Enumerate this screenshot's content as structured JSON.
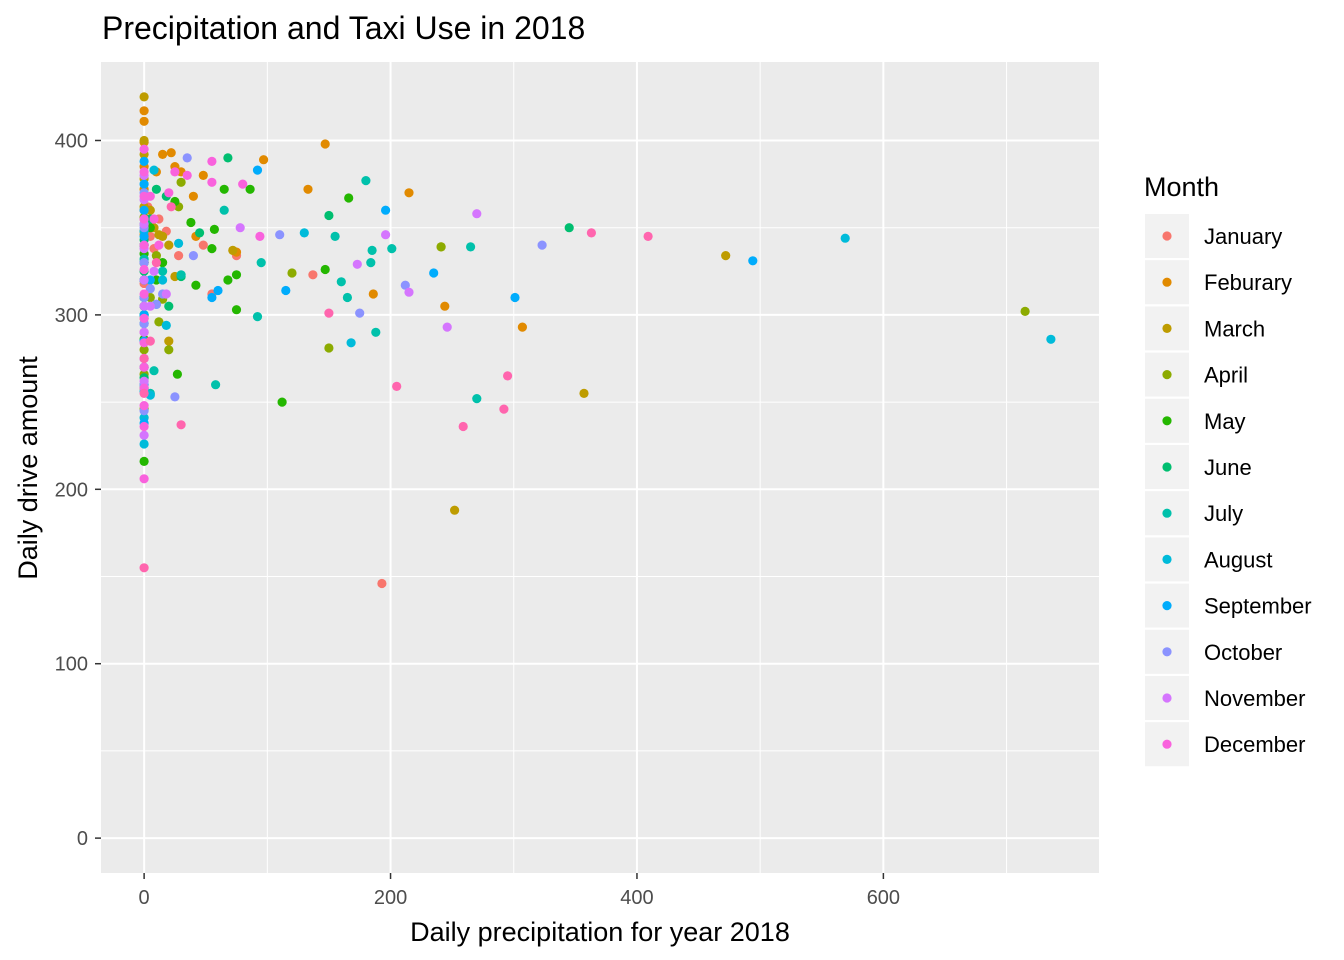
{
  "chart_data": {
    "type": "scatter",
    "title": "Precipitation and Taxi Use in 2018",
    "xlabel": "Daily precipitation for year 2018",
    "ylabel": "Daily drive amount",
    "xlim": [
      -35,
      775
    ],
    "ylim": [
      -20,
      445
    ],
    "x_ticks": [
      0,
      200,
      400,
      600
    ],
    "y_ticks": [
      0,
      100,
      200,
      300,
      400
    ],
    "x_minor_ticks": [
      100,
      300,
      500,
      700
    ],
    "y_minor_ticks": [
      50,
      150,
      250,
      350
    ],
    "grid": true,
    "legend_title": "Month",
    "legend_position": "right",
    "series": [
      {
        "name": "January",
        "color": "#F8766D",
        "points": [
          [
            0,
            355
          ],
          [
            0,
            340
          ],
          [
            0,
            330
          ],
          [
            0,
            318
          ],
          [
            0,
            305
          ],
          [
            0,
            290
          ],
          [
            0,
            270
          ],
          [
            3,
            362
          ],
          [
            5,
            345
          ],
          [
            8,
            338
          ],
          [
            12,
            355
          ],
          [
            18,
            348
          ],
          [
            28,
            334
          ],
          [
            55,
            312
          ],
          [
            48,
            340
          ],
          [
            75,
            334
          ],
          [
            137,
            323
          ],
          [
            193,
            146
          ]
        ]
      },
      {
        "name": "Feburary",
        "color": "#E18A00",
        "points": [
          [
            0,
            417
          ],
          [
            0,
            411
          ],
          [
            0,
            399
          ],
          [
            0,
            385
          ],
          [
            0,
            372
          ],
          [
            0,
            360
          ],
          [
            0,
            346
          ],
          [
            0,
            330
          ],
          [
            10,
            382
          ],
          [
            15,
            392
          ],
          [
            22,
            393
          ],
          [
            25,
            385
          ],
          [
            30,
            382
          ],
          [
            40,
            368
          ],
          [
            48,
            380
          ],
          [
            42,
            345
          ],
          [
            75,
            336
          ],
          [
            97,
            389
          ],
          [
            133,
            372
          ],
          [
            147,
            398
          ],
          [
            186,
            312
          ],
          [
            215,
            370
          ],
          [
            244,
            305
          ],
          [
            307,
            293
          ]
        ]
      },
      {
        "name": "March",
        "color": "#BE9C00",
        "points": [
          [
            0,
            425
          ],
          [
            0,
            400
          ],
          [
            0,
            392
          ],
          [
            0,
            378
          ],
          [
            0,
            362
          ],
          [
            0,
            348
          ],
          [
            0,
            330
          ],
          [
            0,
            310
          ],
          [
            0,
            298
          ],
          [
            5,
            360
          ],
          [
            8,
            350
          ],
          [
            12,
            346
          ],
          [
            15,
            345
          ],
          [
            20,
            285
          ],
          [
            25,
            322
          ],
          [
            20,
            340
          ],
          [
            72,
            337
          ],
          [
            241,
            339
          ],
          [
            252,
            188
          ],
          [
            357,
            255
          ],
          [
            472,
            334
          ]
        ]
      },
      {
        "name": "April",
        "color": "#8CAB00",
        "points": [
          [
            0,
            356
          ],
          [
            0,
            340
          ],
          [
            0,
            320
          ],
          [
            0,
            300
          ],
          [
            0,
            280
          ],
          [
            0,
            266
          ],
          [
            0,
            246
          ],
          [
            5,
            310
          ],
          [
            10,
            334
          ],
          [
            12,
            296
          ],
          [
            15,
            309
          ],
          [
            20,
            280
          ],
          [
            30,
            376
          ],
          [
            28,
            362
          ],
          [
            120,
            324
          ],
          [
            150,
            281
          ],
          [
            241,
            339
          ],
          [
            715,
            302
          ]
        ]
      },
      {
        "name": "May",
        "color": "#24B700",
        "points": [
          [
            0,
            335
          ],
          [
            0,
            320
          ],
          [
            0,
            300
          ],
          [
            0,
            286
          ],
          [
            0,
            258
          ],
          [
            0,
            216
          ],
          [
            5,
            350
          ],
          [
            10,
            320
          ],
          [
            15,
            330
          ],
          [
            25,
            365
          ],
          [
            27,
            266
          ],
          [
            38,
            353
          ],
          [
            42,
            317
          ],
          [
            55,
            338
          ],
          [
            57,
            349
          ],
          [
            65,
            372
          ],
          [
            68,
            320
          ],
          [
            75,
            303
          ],
          [
            75,
            323
          ],
          [
            86,
            372
          ],
          [
            112,
            250
          ],
          [
            147,
            326
          ],
          [
            166,
            367
          ]
        ]
      },
      {
        "name": "June",
        "color": "#00BE70",
        "points": [
          [
            0,
            343
          ],
          [
            0,
            325
          ],
          [
            0,
            305
          ],
          [
            0,
            285
          ],
          [
            0,
            264
          ],
          [
            5,
            355
          ],
          [
            10,
            372
          ],
          [
            18,
            368
          ],
          [
            20,
            305
          ],
          [
            30,
            322
          ],
          [
            45,
            347
          ],
          [
            68,
            390
          ],
          [
            150,
            357
          ],
          [
            345,
            350
          ]
        ]
      },
      {
        "name": "July",
        "color": "#00C1AB",
        "points": [
          [
            0,
            352
          ],
          [
            0,
            332
          ],
          [
            0,
            310
          ],
          [
            0,
            295
          ],
          [
            0,
            260
          ],
          [
            5,
            255
          ],
          [
            8,
            268
          ],
          [
            15,
            325
          ],
          [
            30,
            323
          ],
          [
            58,
            260
          ],
          [
            65,
            360
          ],
          [
            92,
            299
          ],
          [
            95,
            330
          ],
          [
            155,
            345
          ],
          [
            160,
            319
          ],
          [
            165,
            310
          ],
          [
            180,
            377
          ],
          [
            185,
            337
          ],
          [
            184,
            330
          ],
          [
            188,
            290
          ],
          [
            201,
            338
          ],
          [
            265,
            339
          ],
          [
            270,
            252
          ]
        ]
      },
      {
        "name": "August",
        "color": "#00BBDA",
        "points": [
          [
            0,
            348
          ],
          [
            0,
            340
          ],
          [
            0,
            320
          ],
          [
            0,
            310
          ],
          [
            0,
            300
          ],
          [
            0,
            270
          ],
          [
            0,
            256
          ],
          [
            0,
            241
          ],
          [
            0,
            226
          ],
          [
            5,
            254
          ],
          [
            8,
            383
          ],
          [
            15,
            320
          ],
          [
            18,
            294
          ],
          [
            28,
            341
          ],
          [
            130,
            347
          ],
          [
            168,
            284
          ],
          [
            569,
            344
          ],
          [
            736,
            286
          ]
        ]
      },
      {
        "name": "September",
        "color": "#00ACFC",
        "points": [
          [
            0,
            388
          ],
          [
            0,
            375
          ],
          [
            0,
            360
          ],
          [
            0,
            345
          ],
          [
            0,
            330
          ],
          [
            0,
            320
          ],
          [
            0,
            300
          ],
          [
            0,
            285
          ],
          [
            0,
            238
          ],
          [
            5,
            320
          ],
          [
            10,
            306
          ],
          [
            55,
            310
          ],
          [
            60,
            314
          ],
          [
            92,
            383
          ],
          [
            115,
            314
          ],
          [
            196,
            360
          ],
          [
            235,
            324
          ],
          [
            301,
            310
          ],
          [
            494,
            331
          ]
        ]
      },
      {
        "name": "October",
        "color": "#8B93FF",
        "points": [
          [
            0,
            370
          ],
          [
            0,
            350
          ],
          [
            0,
            330
          ],
          [
            0,
            310
          ],
          [
            0,
            295
          ],
          [
            0,
            275
          ],
          [
            0,
            260
          ],
          [
            0,
            245
          ],
          [
            5,
            315
          ],
          [
            10,
            306
          ],
          [
            15,
            312
          ],
          [
            25,
            253
          ],
          [
            35,
            390
          ],
          [
            40,
            334
          ],
          [
            110,
            346
          ],
          [
            175,
            301
          ],
          [
            212,
            317
          ],
          [
            323,
            340
          ]
        ]
      },
      {
        "name": "November",
        "color": "#D575FE",
        "points": [
          [
            0,
            380
          ],
          [
            0,
            366
          ],
          [
            0,
            352
          ],
          [
            0,
            338
          ],
          [
            0,
            320
          ],
          [
            0,
            305
          ],
          [
            0,
            290
          ],
          [
            0,
            275
          ],
          [
            0,
            262
          ],
          [
            0,
            231
          ],
          [
            5,
            305
          ],
          [
            8,
            325
          ],
          [
            18,
            312
          ],
          [
            78,
            350
          ],
          [
            173,
            329
          ],
          [
            196,
            346
          ],
          [
            215,
            313
          ],
          [
            246,
            293
          ],
          [
            270,
            358
          ]
        ]
      },
      {
        "name": "December",
        "color": "#F962DD",
        "points": [
          [
            0,
            395
          ],
          [
            0,
            382
          ],
          [
            0,
            368
          ],
          [
            0,
            355
          ],
          [
            0,
            340
          ],
          [
            0,
            326
          ],
          [
            0,
            312
          ],
          [
            0,
            298
          ],
          [
            0,
            284
          ],
          [
            0,
            270
          ],
          [
            0,
            258
          ],
          [
            0,
            248
          ],
          [
            0,
            236
          ],
          [
            0,
            206
          ],
          [
            5,
            368
          ],
          [
            8,
            355
          ],
          [
            12,
            340
          ],
          [
            20,
            370
          ],
          [
            25,
            382
          ],
          [
            35,
            380
          ],
          [
            55,
            388
          ],
          [
            55,
            376
          ],
          [
            80,
            375
          ],
          [
            94,
            345
          ]
        ]
      },
      {
        "name": "(unlabeled)",
        "color": "#FF65AE",
        "points": [
          [
            0,
            155
          ],
          [
            0,
            275
          ],
          [
            0,
            255
          ],
          [
            5,
            285
          ],
          [
            10,
            330
          ],
          [
            22,
            362
          ],
          [
            30,
            237
          ],
          [
            150,
            301
          ],
          [
            205,
            259
          ],
          [
            259,
            236
          ],
          [
            292,
            246
          ],
          [
            295,
            265
          ],
          [
            363,
            347
          ],
          [
            409,
            345
          ]
        ]
      }
    ]
  }
}
